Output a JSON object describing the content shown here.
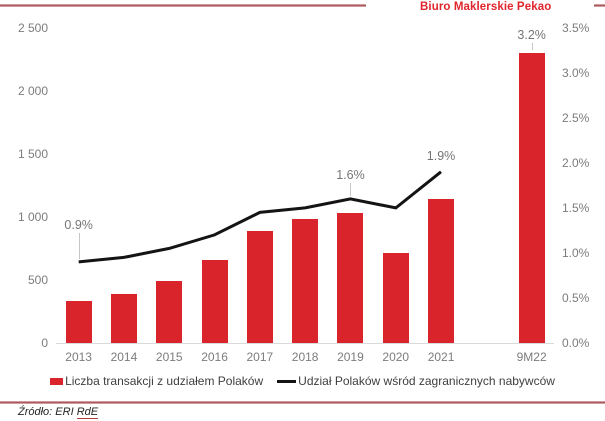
{
  "header": {
    "brand": "Biuro Maklerskie Pekao"
  },
  "chart_data": {
    "type": "bar",
    "subtype": "combo-bar-line",
    "categories": [
      "2013",
      "2014",
      "2015",
      "2016",
      "2017",
      "2018",
      "2019",
      "2020",
      "2021",
      "9M22"
    ],
    "series": [
      {
        "name": "Liczba transakcji z udziałem Polaków",
        "type": "bar",
        "axis": "left",
        "color": "#d9242c",
        "values": [
          330,
          385,
          490,
          660,
          890,
          980,
          1030,
          715,
          1140,
          2300
        ]
      },
      {
        "name": "Udział Polaków wśród zagranicznych nabywców",
        "type": "line",
        "axis": "right",
        "color": "#141414",
        "values": [
          0.9,
          0.95,
          1.05,
          1.2,
          1.45,
          1.5,
          1.6,
          1.5,
          1.9,
          null
        ]
      }
    ],
    "left_axis": {
      "min": 0,
      "max": 2500,
      "ticks": [
        {
          "v": 2500,
          "label": "2 500"
        },
        {
          "v": 2000,
          "label": "2 000"
        },
        {
          "v": 1500,
          "label": "1 500"
        },
        {
          "v": 1000,
          "label": "1 000"
        },
        {
          "v": 500,
          "label": "500"
        },
        {
          "v": 0,
          "label": "0"
        }
      ]
    },
    "right_axis": {
      "min": 0,
      "max": 3.5,
      "ticks": [
        {
          "v": 3.5,
          "label": "3.5%"
        },
        {
          "v": 3.0,
          "label": "3.0%"
        },
        {
          "v": 2.5,
          "label": "2.5%"
        },
        {
          "v": 2.0,
          "label": "2.0%"
        },
        {
          "v": 1.5,
          "label": "1.5%"
        },
        {
          "v": 1.0,
          "label": "1.0%"
        },
        {
          "v": 0.5,
          "label": "0.5%"
        },
        {
          "v": 0.0,
          "label": "0.0%"
        }
      ]
    },
    "annotations": [
      {
        "text": "0.9%",
        "category": "2013",
        "target": "line",
        "leader": true,
        "gap": 30
      },
      {
        "text": "1.6%",
        "category": "2019",
        "target": "line",
        "leader": true,
        "gap": 17
      },
      {
        "text": "1.9%",
        "category": "2021",
        "target": "line",
        "leader": false,
        "gap": 9
      },
      {
        "text": "3.2%",
        "category": "9M22",
        "target": "bar",
        "leader": true,
        "gap": 11
      }
    ],
    "grid": false,
    "legend_position": "bottom",
    "gap_before_last_category": true
  },
  "legend": {
    "bar_label": "Liczba transakcji z udziałem Polaków",
    "line_label": "Udział Polaków wśród zagranicznych nabywców"
  },
  "footer": {
    "source_prefix": "Źródło: ERI ",
    "source_link": "RdE"
  }
}
